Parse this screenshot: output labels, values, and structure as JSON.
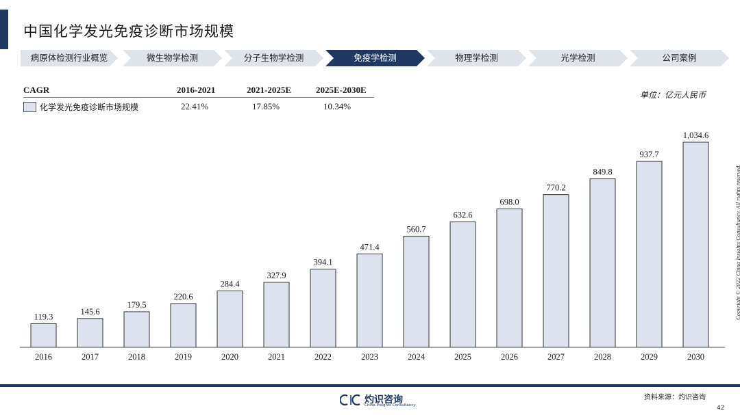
{
  "title": "中国化学发光免疫诊断市场规模",
  "nav": [
    {
      "label": "病原体检测行业概览",
      "active": false
    },
    {
      "label": "微生物学检测",
      "active": false
    },
    {
      "label": "分子生物学检测",
      "active": false
    },
    {
      "label": "免疫学检测",
      "active": true
    },
    {
      "label": "物理学检测",
      "active": false
    },
    {
      "label": "光学检测",
      "active": false
    },
    {
      "label": "公司案例",
      "active": false
    }
  ],
  "cagr": {
    "header": "CAGR",
    "periods": [
      "2016-2021",
      "2021-2025E",
      "2025E-2030E"
    ],
    "series_label": "化学发光免疫诊断市场规模",
    "values": [
      "22.41%",
      "17.85%",
      "10.34%"
    ]
  },
  "unit": "单位：亿元人民币",
  "copyright": "Copyright © 2022 China Insights Consultancy. All rights reserved.",
  "footer": {
    "logo_text": "灼识咨询",
    "logo_sub": "China Insights Consultancy",
    "source": "资料来源：灼识咨询",
    "page": "42"
  },
  "colors": {
    "navy": "#1f3864",
    "bar_fill": "#dde3ee",
    "nav_inactive": "#dfe4ea"
  },
  "chart_data": {
    "type": "bar",
    "title": "",
    "xlabel": "",
    "ylabel": "",
    "categories": [
      "2016",
      "2017",
      "2018",
      "2019",
      "2020",
      "2021",
      "2022",
      "2023",
      "2024",
      "2025",
      "2026",
      "2027",
      "2028",
      "2029",
      "2030"
    ],
    "values": [
      119.3,
      145.6,
      179.5,
      220.6,
      284.4,
      327.9,
      394.1,
      471.4,
      560.7,
      632.6,
      698.0,
      770.2,
      849.8,
      937.7,
      1034.6
    ],
    "value_labels": [
      "119.3",
      "145.6",
      "179.5",
      "220.6",
      "284.4",
      "327.9",
      "394.1",
      "471.4",
      "560.7",
      "632.6",
      "698.0",
      "770.2",
      "849.8",
      "937.7",
      "1,034.6"
    ],
    "series": [
      {
        "name": "化学发光免疫诊断市场规模",
        "values": [
          119.3,
          145.6,
          179.5,
          220.6,
          284.4,
          327.9,
          394.1,
          471.4,
          560.7,
          632.6,
          698.0,
          770.2,
          849.8,
          937.7,
          1034.6
        ]
      }
    ]
  }
}
